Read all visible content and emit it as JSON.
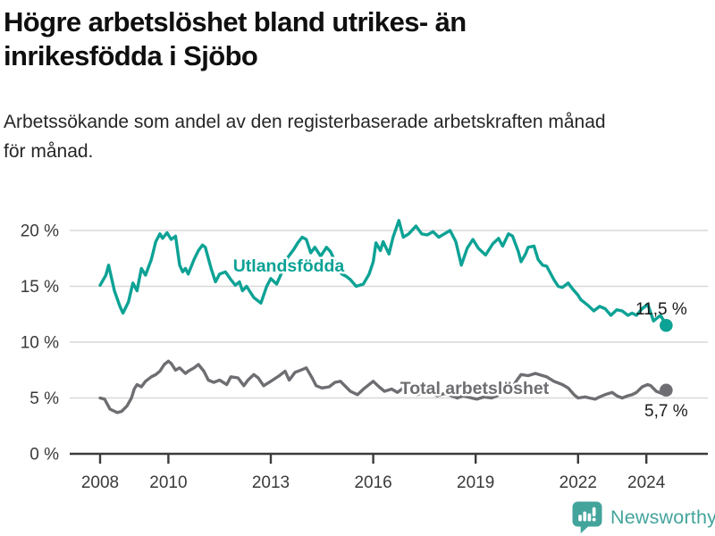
{
  "header": {
    "title_line1": "Högre arbetslöshet bland utrikes- än",
    "title_line2": "inrikesfödda i Sjöbo",
    "subtitle_line1": "Arbetssökande som andel av den registerbaserade arbetskraften månad",
    "subtitle_line2": "för månad."
  },
  "footer": {
    "brand": "Newsworthy",
    "logo_icon": "bar-chart-speech-bubble-icon"
  },
  "colors": {
    "foreign_born": "#0ca295",
    "total": "#6e6e72",
    "grid": "#d8d8d8",
    "axis": "#3b3b3b",
    "tick_label": "#3a3a3a",
    "end_label": "#1a1a1a",
    "brand_teal": "#43a49c",
    "background": "#ffffff"
  },
  "chart_data": {
    "type": "line",
    "title": "Högre arbetslöshet bland utrikes- än inrikesfödda i Sjöbo",
    "subtitle": "Arbetssökande som andel av den registerbaserade arbetskraften månad för månad.",
    "grid": true,
    "legend_position": "inline-labels",
    "x_axis": {
      "ticks": [
        2008,
        2010,
        2013,
        2016,
        2019,
        2022,
        2024
      ],
      "range": [
        2007.1,
        2025.8
      ]
    },
    "y_axis": {
      "ticks": [
        0,
        5,
        10,
        15,
        20
      ],
      "tick_labels": [
        "0 %",
        "5 %",
        "10 %",
        "15 %",
        "20 %"
      ],
      "range": [
        0,
        20
      ],
      "unit": "%"
    },
    "series": [
      {
        "name": "Utlandsfödda",
        "color": "#0ca295",
        "end_label": "11,5 %",
        "end_value": 11.5,
        "x": [
          2008.0,
          2008.17,
          2008.25,
          2008.42,
          2008.58,
          2008.67,
          2008.83,
          2008.96,
          2009.08,
          2009.21,
          2009.33,
          2009.5,
          2009.63,
          2009.75,
          2009.83,
          2009.96,
          2010.08,
          2010.21,
          2010.33,
          2010.42,
          2010.5,
          2010.58,
          2010.75,
          2010.88,
          2011.0,
          2011.08,
          2011.25,
          2011.38,
          2011.5,
          2011.67,
          2011.83,
          2011.96,
          2012.08,
          2012.17,
          2012.29,
          2012.5,
          2012.71,
          2012.88,
          2013.0,
          2013.17,
          2013.33,
          2013.5,
          2013.67,
          2013.79,
          2013.92,
          2014.04,
          2014.17,
          2014.29,
          2014.46,
          2014.63,
          2014.75,
          2014.96,
          2015.08,
          2015.21,
          2015.33,
          2015.5,
          2015.71,
          2015.88,
          2016.0,
          2016.08,
          2016.21,
          2016.29,
          2016.46,
          2016.58,
          2016.75,
          2016.88,
          2017.04,
          2017.25,
          2017.42,
          2017.58,
          2017.75,
          2017.92,
          2018.08,
          2018.25,
          2018.42,
          2018.58,
          2018.75,
          2018.92,
          2019.08,
          2019.29,
          2019.5,
          2019.67,
          2019.79,
          2019.96,
          2020.08,
          2020.25,
          2020.33,
          2020.46,
          2020.54,
          2020.71,
          2020.83,
          2020.96,
          2021.08,
          2021.29,
          2021.42,
          2021.54,
          2021.71,
          2021.83,
          2022.0,
          2022.08,
          2022.29,
          2022.46,
          2022.63,
          2022.79,
          2022.96,
          2023.13,
          2023.29,
          2023.46,
          2023.58,
          2023.71,
          2023.88,
          2024.04,
          2024.21,
          2024.33,
          2024.42,
          2024.58
        ],
        "values": [
          15.1,
          16.0,
          16.9,
          14.6,
          13.2,
          12.6,
          13.6,
          15.3,
          14.6,
          16.6,
          16.0,
          17.4,
          19.0,
          19.7,
          19.3,
          19.8,
          19.2,
          19.5,
          16.9,
          16.3,
          16.6,
          16.1,
          17.4,
          18.2,
          18.7,
          18.5,
          16.6,
          15.4,
          16.1,
          16.3,
          15.6,
          15.1,
          15.4,
          14.6,
          15.0,
          14.0,
          13.5,
          15.0,
          15.7,
          15.2,
          16.3,
          17.6,
          18.3,
          18.9,
          19.4,
          19.2,
          18.0,
          18.5,
          17.7,
          18.5,
          18.1,
          16.7,
          16.1,
          15.9,
          15.6,
          15.0,
          15.2,
          16.1,
          17.2,
          18.9,
          18.2,
          19.0,
          17.9,
          19.4,
          20.9,
          19.4,
          19.7,
          20.4,
          19.7,
          19.6,
          19.9,
          19.4,
          19.7,
          20.0,
          19.0,
          16.9,
          18.4,
          19.2,
          18.4,
          17.8,
          18.8,
          19.3,
          18.6,
          19.7,
          19.5,
          18.1,
          17.2,
          17.9,
          18.5,
          18.6,
          17.4,
          16.9,
          16.8,
          15.6,
          15.0,
          14.9,
          15.3,
          14.8,
          14.2,
          13.8,
          13.3,
          12.8,
          13.2,
          13.0,
          12.4,
          12.9,
          12.8,
          12.4,
          12.6,
          12.4,
          13.0,
          13.4,
          11.9,
          12.2,
          12.4,
          11.5
        ]
      },
      {
        "name": "Total arbetslöshet",
        "color": "#6e6e72",
        "end_label": "5,7 %",
        "end_value": 5.7,
        "x": [
          2008.0,
          2008.13,
          2008.29,
          2008.5,
          2008.63,
          2008.79,
          2008.92,
          2009.0,
          2009.08,
          2009.21,
          2009.33,
          2009.5,
          2009.63,
          2009.75,
          2009.88,
          2010.0,
          2010.08,
          2010.21,
          2010.33,
          2010.5,
          2010.58,
          2010.75,
          2010.88,
          2011.04,
          2011.17,
          2011.33,
          2011.5,
          2011.71,
          2011.83,
          2012.04,
          2012.21,
          2012.33,
          2012.5,
          2012.63,
          2012.79,
          2013.0,
          2013.25,
          2013.42,
          2013.54,
          2013.71,
          2013.88,
          2014.04,
          2014.21,
          2014.33,
          2014.5,
          2014.71,
          2014.88,
          2015.04,
          2015.33,
          2015.54,
          2015.75,
          2016.0,
          2016.17,
          2016.33,
          2016.54,
          2016.71,
          2016.88,
          2017.08,
          2017.29,
          2017.5,
          2017.71,
          2017.88,
          2018.08,
          2018.29,
          2018.46,
          2018.63,
          2018.88,
          2019.04,
          2019.25,
          2019.46,
          2019.63,
          2019.83,
          2020.04,
          2020.21,
          2020.33,
          2020.54,
          2020.75,
          2020.96,
          2021.08,
          2021.29,
          2021.54,
          2021.71,
          2021.88,
          2022.0,
          2022.21,
          2022.33,
          2022.5,
          2022.63,
          2022.79,
          2023.0,
          2023.13,
          2023.29,
          2023.46,
          2023.58,
          2023.71,
          2023.88,
          2024.04,
          2024.13,
          2024.29,
          2024.46,
          2024.58
        ],
        "values": [
          5.0,
          4.9,
          4.0,
          3.7,
          3.8,
          4.3,
          5.0,
          5.8,
          6.2,
          6.0,
          6.5,
          6.9,
          7.1,
          7.4,
          8.0,
          8.3,
          8.1,
          7.5,
          7.7,
          7.2,
          7.4,
          7.7,
          8.0,
          7.4,
          6.6,
          6.4,
          6.6,
          6.2,
          6.9,
          6.8,
          6.1,
          6.6,
          7.1,
          6.8,
          6.1,
          6.5,
          7.0,
          7.4,
          6.6,
          7.3,
          7.5,
          7.7,
          6.8,
          6.1,
          5.9,
          6.0,
          6.4,
          6.5,
          5.6,
          5.3,
          5.9,
          6.5,
          6.0,
          5.6,
          5.8,
          5.5,
          5.9,
          5.6,
          5.3,
          5.6,
          5.4,
          5.2,
          5.4,
          5.2,
          5.0,
          5.2,
          5.0,
          4.9,
          5.1,
          5.0,
          5.2,
          5.5,
          5.8,
          6.6,
          7.1,
          7.0,
          7.2,
          7.0,
          6.9,
          6.5,
          6.2,
          5.9,
          5.3,
          5.0,
          5.1,
          5.0,
          4.9,
          5.1,
          5.3,
          5.5,
          5.2,
          5.0,
          5.2,
          5.3,
          5.5,
          6.0,
          6.2,
          6.1,
          5.6,
          5.4,
          5.7
        ]
      }
    ]
  }
}
